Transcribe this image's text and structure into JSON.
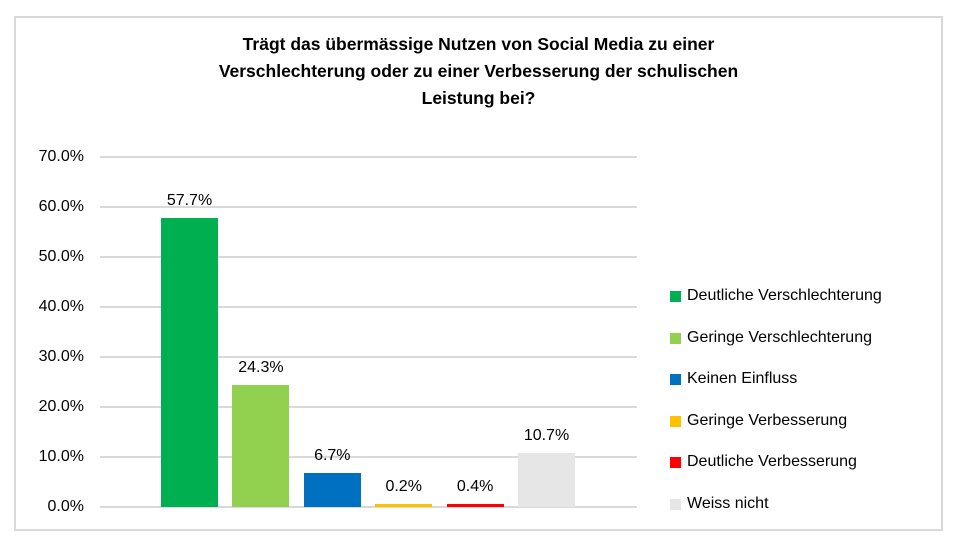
{
  "chart_data": {
    "type": "bar",
    "title": "Trägt das übermässige Nutzen von Social Media zu einer Verschlechterung oder zu einer Verbesserung der schulischen Leistung bei?",
    "title_lines": [
      "Trägt das übermässige Nutzen von Social Media zu einer",
      "Verschlechterung oder zu einer Verbesserung der schulischen",
      "Leistung bei?"
    ],
    "categories": [
      "Deutliche Verschlechterung",
      "Geringe Verschlechterung",
      "Keinen Einfluss",
      "Geringe Verbesserung",
      "Deutliche Verbesserung",
      "Weiss nicht"
    ],
    "values": [
      57.7,
      24.3,
      6.7,
      0.2,
      0.4,
      10.7
    ],
    "value_labels": [
      "57.7%",
      "24.3%",
      "6.7%",
      "0.2%",
      "0.4%",
      "10.7%"
    ],
    "colors": [
      "#00B050",
      "#92D050",
      "#0070C0",
      "#FFC000",
      "#FF0000",
      "#E6E6E6"
    ],
    "xlabel": "",
    "ylabel": "",
    "ylim": [
      0,
      70
    ],
    "ytick_labels": [
      "0.0%",
      "10.0%",
      "20.0%",
      "30.0%",
      "40.0%",
      "50.0%",
      "60.0%",
      "70.0%"
    ],
    "grid": true,
    "legend_position": "right",
    "gridline_color": "#D9D9D9",
    "frame_border_color": "#D9D9D9",
    "text_color": "#000000"
  }
}
